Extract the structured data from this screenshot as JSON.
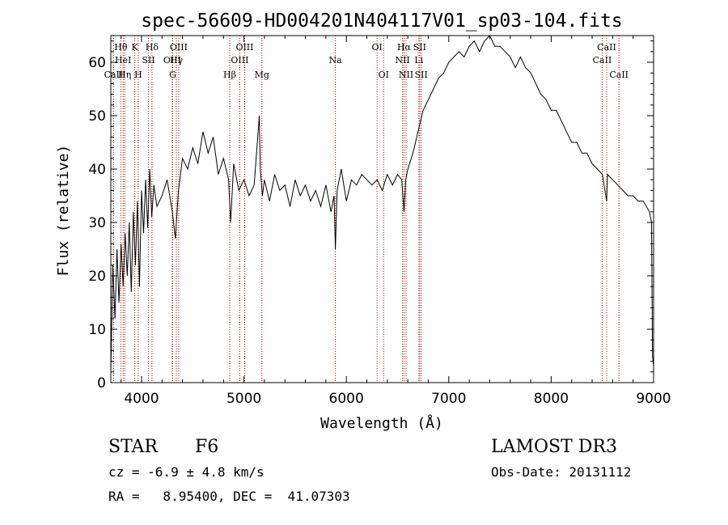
{
  "chart_data": {
    "type": "line",
    "title": "spec-56609-HD004201N404117V01_sp03-104.fits",
    "xlabel": "Wavelength (Å)",
    "ylabel": "Flux (relative)",
    "xlim": [
      3700,
      9000
    ],
    "ylim": [
      0,
      65
    ],
    "xticks": [
      4000,
      5000,
      6000,
      7000,
      8000,
      9000
    ],
    "yticks": [
      0,
      10,
      20,
      30,
      40,
      50,
      60
    ],
    "line_color": "#000000",
    "marker_color": "#b00000",
    "series": [
      {
        "name": "flux",
        "x": [
          3700,
          3720,
          3740,
          3760,
          3780,
          3800,
          3820,
          3840,
          3860,
          3880,
          3900,
          3920,
          3940,
          3960,
          3980,
          4000,
          4020,
          4040,
          4060,
          4080,
          4100,
          4120,
          4150,
          4200,
          4250,
          4300,
          4330,
          4360,
          4400,
          4450,
          4500,
          4550,
          4600,
          4650,
          4700,
          4750,
          4800,
          4850,
          4870,
          4900,
          4950,
          5000,
          5050,
          5100,
          5150,
          5160,
          5180,
          5200,
          5250,
          5300,
          5350,
          5400,
          5450,
          5500,
          5550,
          5600,
          5650,
          5700,
          5750,
          5800,
          5850,
          5880,
          5893,
          5910,
          5950,
          6000,
          6050,
          6100,
          6150,
          6200,
          6250,
          6300,
          6350,
          6400,
          6450,
          6500,
          6540,
          6563,
          6580,
          6600,
          6650,
          6700,
          6750,
          6800,
          6850,
          6900,
          6950,
          7000,
          7050,
          7100,
          7150,
          7200,
          7250,
          7300,
          7350,
          7400,
          7450,
          7500,
          7550,
          7600,
          7650,
          7700,
          7750,
          7800,
          7850,
          7900,
          7950,
          8000,
          8050,
          8100,
          8150,
          8200,
          8250,
          8300,
          8350,
          8400,
          8450,
          8500,
          8542,
          8550,
          8600,
          8650,
          8700,
          8750,
          8800,
          8850,
          8900,
          8930,
          8960,
          8980,
          8990,
          9000
        ],
        "y": [
          2,
          22,
          12,
          25,
          15,
          26,
          18,
          28,
          20,
          30,
          17,
          32,
          22,
          34,
          18,
          36,
          28,
          38,
          29,
          40,
          31,
          37,
          33,
          35,
          38,
          32,
          27,
          36,
          42,
          40,
          44,
          41,
          47,
          43,
          46,
          39,
          42,
          38,
          30,
          41,
          36,
          38,
          35,
          37,
          50,
          40,
          35,
          38,
          34,
          39,
          36,
          37,
          33,
          38,
          35,
          37,
          34,
          36,
          33,
          37,
          32,
          35,
          25,
          36,
          40,
          34,
          38,
          37,
          39,
          38,
          37,
          38,
          36,
          39,
          37,
          39,
          38,
          32,
          38,
          40,
          43,
          47,
          51,
          53,
          55,
          57,
          58,
          60,
          61,
          62,
          61,
          63,
          64,
          62,
          64,
          65,
          63,
          63,
          62,
          61,
          59,
          61,
          59,
          58,
          56,
          54,
          53,
          51,
          51,
          49,
          47,
          45,
          45,
          43,
          43,
          41,
          40,
          39,
          34,
          39,
          38,
          37,
          36,
          35,
          35,
          34,
          34,
          33,
          32,
          30,
          5,
          3
        ]
      }
    ],
    "lines": [
      {
        "name": "CaII",
        "wavelength": 3727,
        "row": 3
      },
      {
        "name": "Hθ",
        "wavelength": 3798,
        "row": 1
      },
      {
        "name": "HeI",
        "wavelength": 3820,
        "row": 2
      },
      {
        "name": "Hη",
        "wavelength": 3835,
        "row": 3
      },
      {
        "name": "K",
        "wavelength": 3934,
        "row": 1
      },
      {
        "name": "SII",
        "wavelength": 4068,
        "row": 2
      },
      {
        "name": "H",
        "wavelength": 3968,
        "row": 3
      },
      {
        "name": "Hδ",
        "wavelength": 4102,
        "row": 1
      },
      {
        "name": "OIII",
        "wavelength": 4300,
        "row": 2
      },
      {
        "name": "G",
        "wavelength": 4304,
        "row": 3
      },
      {
        "name": "OIII",
        "wavelength": 4363,
        "row": 1
      },
      {
        "name": "Hγ",
        "wavelength": 4340,
        "row": 2
      },
      {
        "name": "Hβ",
        "wavelength": 4861,
        "row": 3
      },
      {
        "name": "OIII",
        "wavelength": 4959,
        "row": 2
      },
      {
        "name": "OIII",
        "wavelength": 5007,
        "row": 1
      },
      {
        "name": "Mg",
        "wavelength": 5175,
        "row": 3
      },
      {
        "name": "Na",
        "wavelength": 5893,
        "row": 2
      },
      {
        "name": "OI",
        "wavelength": 6300,
        "row": 1
      },
      {
        "name": "OI",
        "wavelength": 6364,
        "row": 3
      },
      {
        "name": "NII",
        "wavelength": 6548,
        "row": 2
      },
      {
        "name": "NII",
        "wavelength": 6583,
        "row": 3
      },
      {
        "name": "Hα",
        "wavelength": 6563,
        "row": 1
      },
      {
        "name": "SII",
        "wavelength": 6716,
        "row": 1
      },
      {
        "name": "SII",
        "wavelength": 6731,
        "row": 3
      },
      {
        "name": "Li",
        "wavelength": 6708,
        "row": 2
      },
      {
        "name": "CaII",
        "wavelength": 8498,
        "row": 2
      },
      {
        "name": "CaII",
        "wavelength": 8542,
        "row": 1
      },
      {
        "name": "CaII",
        "wavelength": 8662,
        "row": 3
      }
    ]
  },
  "info": {
    "object_type": "STAR",
    "subclass": "F6",
    "survey": "LAMOST DR3",
    "cz": "cz = -6.9 ± 4.8 km/s",
    "obs_date": "Obs-Date: 20131112",
    "coords": "RA =   8.95400, DEC =  41.07303"
  }
}
